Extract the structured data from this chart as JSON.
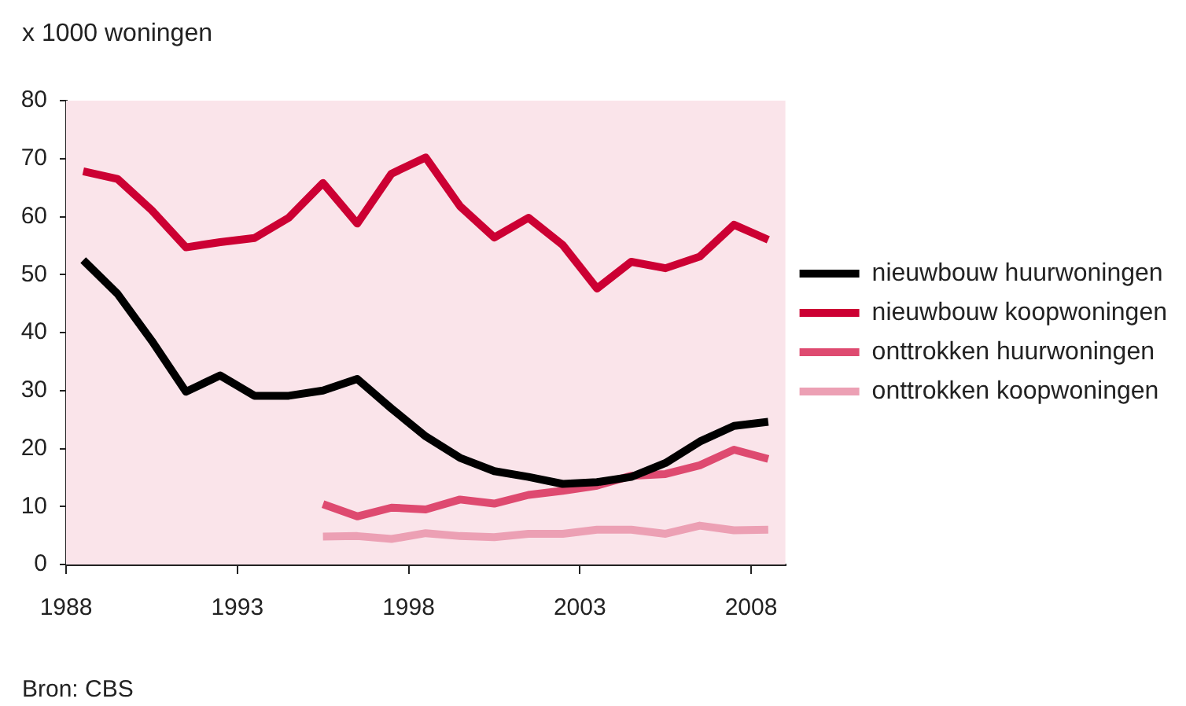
{
  "chart_data": {
    "type": "line",
    "ylabel": "x 1000 woningen",
    "annotations": [
      "Bron: CBS"
    ],
    "x": [
      1988.5,
      1989.5,
      1990.5,
      1991.5,
      1992.5,
      1993.5,
      1994.5,
      1995.5,
      1996.5,
      1997.5,
      1998.5,
      1999.5,
      2000.5,
      2001.5,
      2002.5,
      2003.5,
      2004.5,
      2005.5,
      2006.5,
      2007.5,
      2008.5
    ],
    "series": [
      {
        "name": "nieuwbouw huurwoningen",
        "color": "#000000",
        "values": [
          52.5,
          46.7,
          38.6,
          29.8,
          32.6,
          29.1,
          29.1,
          30.0,
          32.0,
          26.9,
          22.1,
          18.4,
          16.1,
          15.1,
          13.9,
          14.2,
          15.1,
          17.5,
          21.2,
          23.9,
          24.6
        ]
      },
      {
        "name": "nieuwbouw koopwoningen",
        "color": "#cc0033",
        "values": [
          67.8,
          66.5,
          61.1,
          54.7,
          55.6,
          56.3,
          59.8,
          65.8,
          58.8,
          67.4,
          70.2,
          61.8,
          56.4,
          59.8,
          55.1,
          47.6,
          52.2,
          51.1,
          53.1,
          58.6,
          56.0
        ]
      },
      {
        "name": "onttrokken huurwoningen",
        "color": "#de4a70",
        "values": [
          null,
          null,
          null,
          null,
          null,
          null,
          null,
          10.4,
          8.3,
          9.8,
          9.5,
          11.2,
          10.5,
          12.0,
          12.7,
          13.6,
          15.3,
          15.6,
          17.1,
          19.8,
          18.2
        ]
      },
      {
        "name": "onttrokken koopwoningen",
        "color": "#eca0b4",
        "values": [
          null,
          null,
          null,
          null,
          null,
          null,
          null,
          4.8,
          4.9,
          4.4,
          5.4,
          4.9,
          4.7,
          5.3,
          5.3,
          6.0,
          6.0,
          5.3,
          6.7,
          5.9,
          6.0
        ]
      }
    ],
    "xlim": [
      1988,
      2009
    ],
    "xticks": [
      1988,
      1993,
      1998,
      2003,
      2008
    ],
    "ylim": [
      0,
      80
    ],
    "yticks": [
      0,
      10,
      20,
      30,
      40,
      50,
      60,
      70,
      80
    ],
    "legend": "right",
    "marker": "none",
    "line_style": "solid"
  }
}
